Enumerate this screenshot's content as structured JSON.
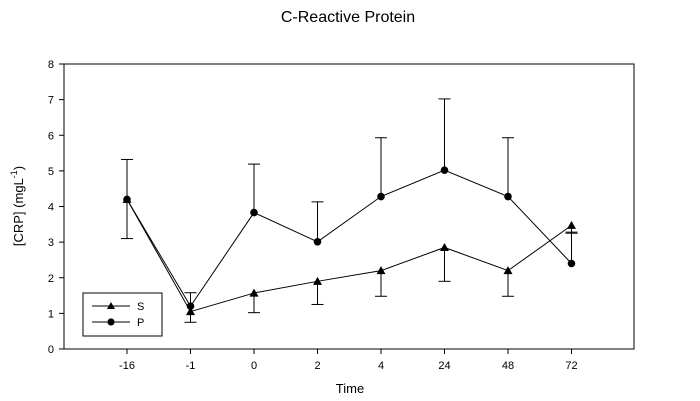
{
  "chart_data": {
    "type": "line",
    "title": "C-Reactive Protein",
    "xlabel": "Time",
    "ylabel": "[CRP] (mgL",
    "ylabel_superscript": "-1",
    "ylabel_suffix": ")",
    "categories": [
      "-16",
      "-1",
      "0",
      "2",
      "4",
      "24",
      "48",
      "72"
    ],
    "ylim": [
      0,
      8
    ],
    "yticks": [
      "0",
      "1",
      "2",
      "3",
      "4",
      "5",
      "6",
      "7",
      "8"
    ],
    "grid": false,
    "legend_position": "bottom-left",
    "series": [
      {
        "name": "S",
        "marker": "triangle",
        "values": [
          4.2,
          1.05,
          1.57,
          1.9,
          2.2,
          2.85,
          2.2,
          3.47
        ],
        "errors": [
          1.1,
          0.3,
          0.55,
          0.65,
          0.72,
          0.95,
          0.72,
          0.22
        ],
        "error_direction": [
          "down",
          "down",
          "down",
          "down",
          "down",
          "down",
          "down",
          "down"
        ]
      },
      {
        "name": "P",
        "marker": "circle",
        "values": [
          4.2,
          1.2,
          3.83,
          3.01,
          4.28,
          5.02,
          4.28,
          2.4
        ],
        "errors": [
          1.12,
          0.38,
          1.36,
          1.12,
          1.65,
          2.0,
          1.65,
          0.88
        ],
        "error_direction": [
          "up",
          "up",
          "up",
          "up",
          "up",
          "up",
          "up",
          "up"
        ]
      }
    ]
  }
}
